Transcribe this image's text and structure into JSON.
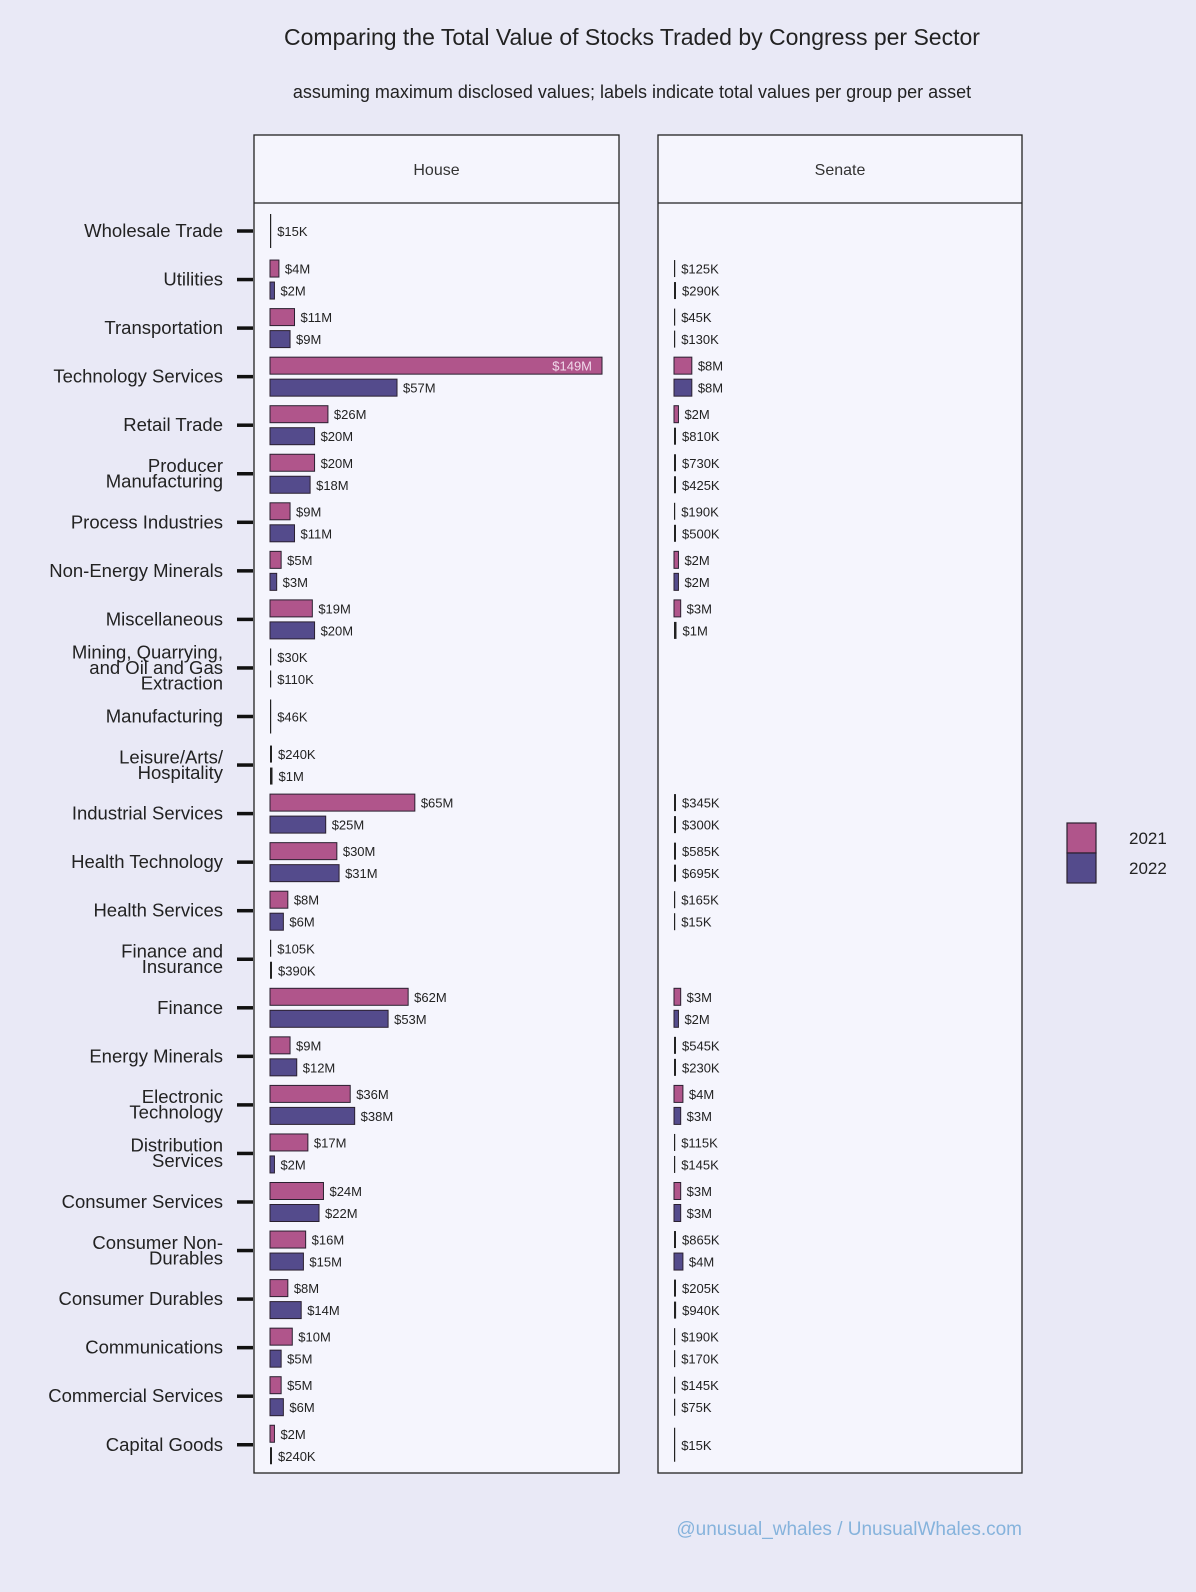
{
  "chart_data": {
    "type": "bar",
    "orientation": "horizontal",
    "title": "Comparing the Total Value of Stocks Traded by Congress per Sector",
    "subtitle": "assuming maximum disclosed values; labels indicate total values per group per asset",
    "value_unit": "USD millions",
    "categories": [
      "Wholesale Trade",
      "Utilities",
      "Transportation",
      "Technology Services",
      "Retail Trade",
      "Producer Manufacturing",
      "Process Industries",
      "Non-Energy Minerals",
      "Miscellaneous",
      "Mining, Quarrying, and Oil and Gas Extraction",
      "Manufacturing",
      "Leisure/Arts/ Hospitality",
      "Industrial Services",
      "Health Technology",
      "Health Services",
      "Finance and Insurance",
      "Finance",
      "Energy Minerals",
      "Electronic Technology",
      "Distribution Services",
      "Consumer Services",
      "Consumer Non- Durables",
      "Consumer Durables",
      "Communications",
      "Commercial Services",
      "Capital Goods"
    ],
    "category_lines": [
      [
        "Wholesale Trade"
      ],
      [
        "Utilities"
      ],
      [
        "Transportation"
      ],
      [
        "Technology Services"
      ],
      [
        "Retail Trade"
      ],
      [
        "Producer",
        "Manufacturing"
      ],
      [
        "Process Industries"
      ],
      [
        "Non-Energy Minerals"
      ],
      [
        "Miscellaneous"
      ],
      [
        "Mining, Quarrying,",
        "and Oil and Gas",
        "Extraction"
      ],
      [
        "Manufacturing"
      ],
      [
        "Leisure/Arts/",
        "Hospitality"
      ],
      [
        "Industrial Services"
      ],
      [
        "Health Technology"
      ],
      [
        "Health Services"
      ],
      [
        "Finance and",
        "Insurance"
      ],
      [
        "Finance"
      ],
      [
        "Energy Minerals"
      ],
      [
        "Electronic",
        "Technology"
      ],
      [
        "Distribution",
        "Services"
      ],
      [
        "Consumer Services"
      ],
      [
        "Consumer Non-",
        "Durables"
      ],
      [
        "Consumer Durables"
      ],
      [
        "Communications"
      ],
      [
        "Commercial Services"
      ],
      [
        "Capital Goods"
      ]
    ],
    "xlim": [
      0,
      152
    ],
    "legend": {
      "placement": "right",
      "entries": [
        "2021",
        "2022"
      ]
    },
    "colors": {
      "2021": "#b0558b",
      "2022": "#544b8c"
    },
    "panels": [
      {
        "name": "House",
        "series": [
          {
            "name": "2021",
            "values": [
              0.015,
              4,
              11,
              149,
              26,
              20,
              9,
              5,
              19,
              0.03,
              0.046,
              0.24,
              65,
              30,
              8,
              0.105,
              62,
              9,
              36,
              17,
              24,
              16,
              8,
              10,
              5,
              2
            ],
            "labels": [
              "$15K",
              "$4M",
              "$11M",
              "$149M",
              "$26M",
              "$20M",
              "$9M",
              "$5M",
              "$19M",
              "$30K",
              "$46K",
              "$240K",
              "$65M",
              "$30M",
              "$8M",
              "$105K",
              "$62M",
              "$9M",
              "$36M",
              "$17M",
              "$24M",
              "$16M",
              "$8M",
              "$10M",
              "$5M",
              "$2M"
            ]
          },
          {
            "name": "2022",
            "values": [
              null,
              2,
              9,
              57,
              20,
              18,
              11,
              3,
              20,
              0.11,
              null,
              1,
              25,
              31,
              6,
              0.39,
              53,
              12,
              38,
              2,
              22,
              15,
              14,
              5,
              6,
              0.24
            ],
            "labels": [
              null,
              "$2M",
              "$9M",
              "$57M",
              "$20M",
              "$18M",
              "$11M",
              "$3M",
              "$20M",
              "$110K",
              null,
              "$1M",
              "$25M",
              "$31M",
              "$6M",
              "$390K",
              "$53M",
              "$12M",
              "$38M",
              "$2M",
              "$22M",
              "$15M",
              "$14M",
              "$5M",
              "$6M",
              "$240K"
            ]
          }
        ]
      },
      {
        "name": "Senate",
        "series": [
          {
            "name": "2021",
            "values": [
              null,
              0.125,
              0.045,
              8,
              2,
              0.73,
              0.19,
              2,
              3,
              null,
              null,
              null,
              0.345,
              0.585,
              0.165,
              null,
              3,
              0.545,
              4,
              0.115,
              3,
              0.865,
              0.205,
              0.19,
              0.145,
              0.015
            ],
            "labels": [
              null,
              "$125K",
              "$45K",
              "$8M",
              "$2M",
              "$730K",
              "$190K",
              "$2M",
              "$3M",
              null,
              null,
              null,
              "$345K",
              "$585K",
              "$165K",
              null,
              "$3M",
              "$545K",
              "$4M",
              "$115K",
              "$3M",
              "$865K",
              "$205K",
              "$190K",
              "$145K",
              "$15K"
            ]
          },
          {
            "name": "2022",
            "values": [
              null,
              0.29,
              0.13,
              8,
              0.81,
              0.425,
              0.5,
              2,
              1,
              null,
              null,
              null,
              0.3,
              0.695,
              0.015,
              null,
              2,
              0.23,
              3,
              0.145,
              3,
              4,
              0.94,
              0.17,
              0.075,
              null
            ],
            "labels": [
              null,
              "$290K",
              "$130K",
              "$8M",
              "$810K",
              "$425K",
              "$500K",
              "$2M",
              "$1M",
              null,
              null,
              null,
              "$300K",
              "$695K",
              "$15K",
              null,
              "$2M",
              "$230K",
              "$3M",
              "$145K",
              "$3M",
              "$4M",
              "$940K",
              "$170K",
              "$75K",
              null
            ]
          }
        ]
      }
    ]
  },
  "footer": "@unusual_whales / UnusualWhales.com"
}
